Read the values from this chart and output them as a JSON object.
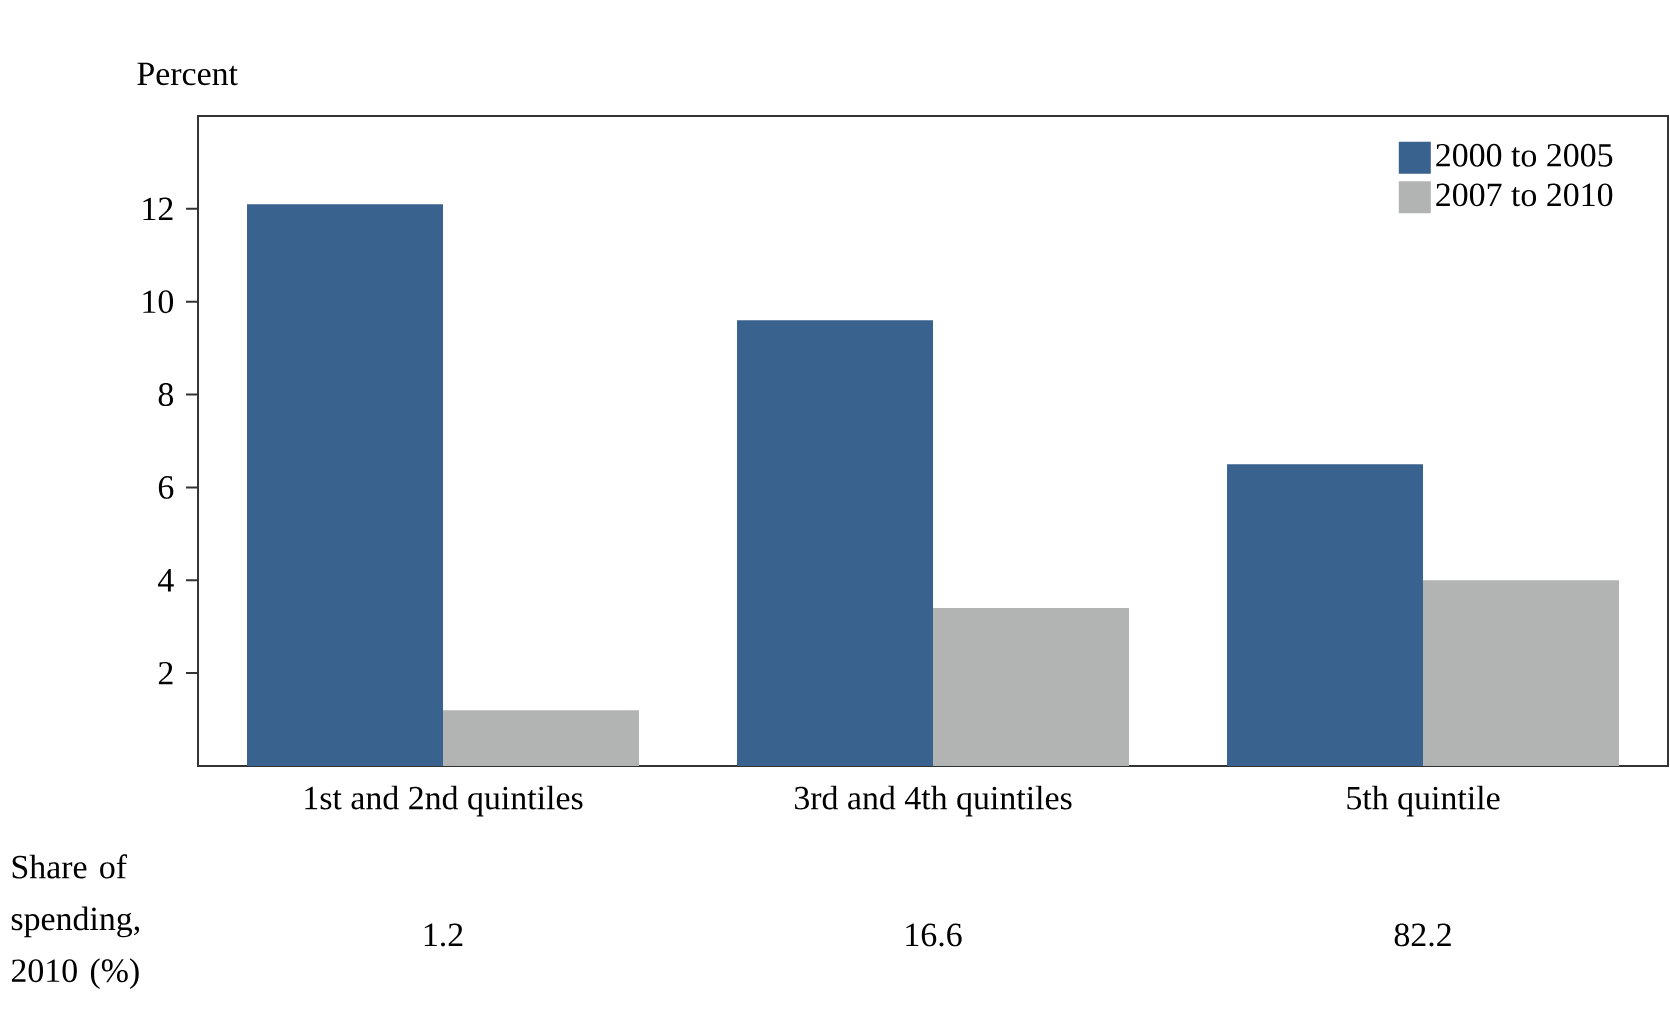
{
  "chart_data": {
    "type": "bar",
    "ylabel": "Percent",
    "categories": [
      "1st and 2nd quintiles",
      "3rd and 4th quintiles",
      "5th quintile"
    ],
    "series": [
      {
        "name": "2000 to 2005",
        "color": "#3a628f",
        "values": [
          12.1,
          9.6,
          6.5
        ]
      },
      {
        "name": "2007 to 2010",
        "color": "#b2b3b3",
        "values": [
          1.2,
          3.4,
          4.0
        ]
      }
    ],
    "ylim": [
      0,
      14
    ],
    "yticks": [
      2,
      4,
      6,
      8,
      10,
      12
    ],
    "legend": "top right",
    "annotations": [
      "Share of spending, 2010 (%)",
      "1.2",
      "16.6",
      "82.2"
    ]
  }
}
